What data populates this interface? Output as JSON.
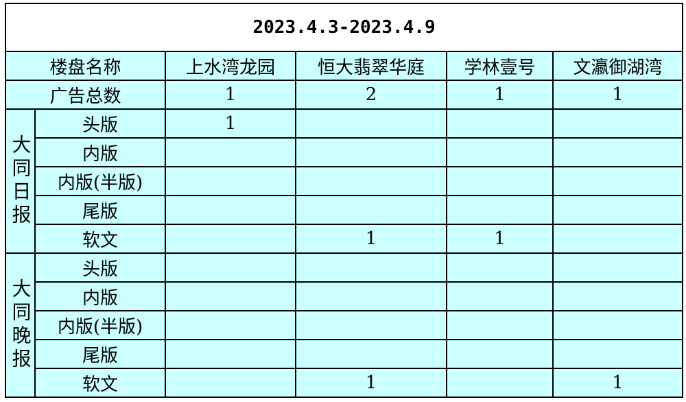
{
  "title": "2023.4.3-2023.4.9",
  "header": {
    "label": "楼盘名称",
    "columns": [
      "上水湾龙园",
      "恒大翡翠华庭",
      "学林壹号",
      "文瀛御湖湾"
    ]
  },
  "total": {
    "label": "广告总数",
    "values": [
      "1",
      "2",
      "1",
      "1"
    ]
  },
  "groups": [
    {
      "name": "大同日报",
      "rows": [
        {
          "label": "头版",
          "values": [
            "1",
            "",
            "",
            ""
          ]
        },
        {
          "label": "内版",
          "values": [
            "",
            "",
            "",
            ""
          ]
        },
        {
          "label": "内版(半版)",
          "values": [
            "",
            "",
            "",
            ""
          ]
        },
        {
          "label": "尾版",
          "values": [
            "",
            "",
            "",
            ""
          ]
        },
        {
          "label": "软文",
          "values": [
            "",
            "1",
            "1",
            ""
          ]
        }
      ]
    },
    {
      "name": "大同晚报",
      "rows": [
        {
          "label": "头版",
          "values": [
            "",
            "",
            "",
            ""
          ]
        },
        {
          "label": "内版",
          "values": [
            "",
            "",
            "",
            ""
          ]
        },
        {
          "label": "内版(半版)",
          "values": [
            "",
            "",
            "",
            ""
          ]
        },
        {
          "label": "尾版",
          "values": [
            "",
            "",
            "",
            ""
          ]
        },
        {
          "label": "软文",
          "values": [
            "",
            "1",
            "",
            "1"
          ]
        }
      ]
    }
  ]
}
